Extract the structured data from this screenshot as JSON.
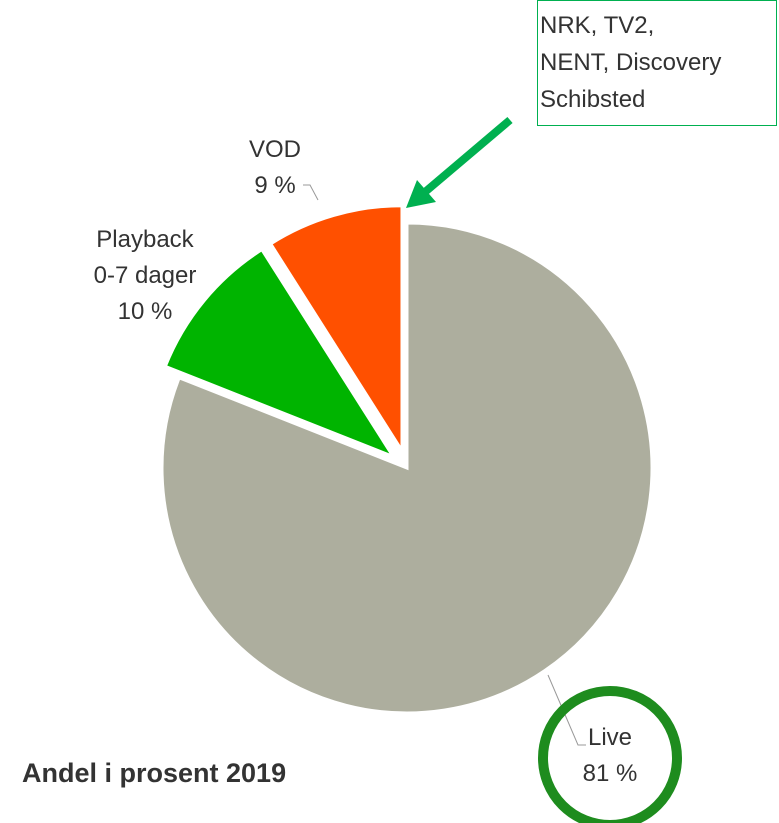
{
  "chart_data": {
    "type": "pie",
    "title": "Andel i prosent 2019",
    "categories": [
      "Live",
      "Playback\n0-7 dager",
      "VOD"
    ],
    "values": [
      81,
      10,
      9
    ],
    "value_labels": [
      "81 %",
      "10 %",
      "9 %"
    ],
    "colors": [
      "#adae9e",
      "#00b400",
      "#ff5000"
    ],
    "annotation": [
      "NRK, TV2,",
      "NENT, Discovery",
      "Schibsted"
    ]
  }
}
